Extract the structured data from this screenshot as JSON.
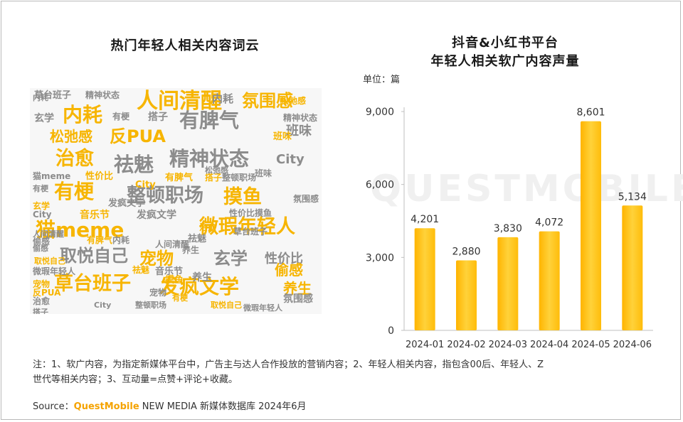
{
  "left_title": "热门年轻人相关内容词云",
  "right_title_line1": "抖音&小红书平台",
  "right_title_line2": "年轻人相关软广内容声量",
  "unit_label": "单位：篇",
  "watermark": "QUESTMOBILE",
  "note_line1": "注：1、软广内容，为指定新媒体平台中，广告主与达人合作投放的营销内容；2、年轻人相关内容，指包含00后、年轻人、Z",
  "note_line2": "世代等相关内容；3、互动量=点赞+评论+收藏。",
  "source_prefix": "Source：",
  "source_brand": "QuestMobile",
  "source_suffix": " NEW MEDIA 新媒体数据库 2024年6月",
  "colors": {
    "bar": "#ffc21a",
    "gold": "#f7b500",
    "grey": "#8c8c8c"
  },
  "word_cloud": [
    {
      "text": "草台班子",
      "color": "grey"
    },
    {
      "text": "精神状态",
      "color": "grey"
    },
    {
      "text": "人间清醒",
      "color": "gold"
    },
    {
      "text": "内耗",
      "color": "grey"
    },
    {
      "text": "氛围感",
      "color": "gold"
    },
    {
      "text": "内耗",
      "color": "gold"
    },
    {
      "text": "有梗",
      "color": "grey"
    },
    {
      "text": "搭子",
      "color": "grey"
    },
    {
      "text": "有脾气",
      "color": "grey"
    },
    {
      "text": "松弛感",
      "color": "gold"
    },
    {
      "text": "反PUA",
      "color": "gold"
    },
    {
      "text": "班味",
      "color": "grey"
    },
    {
      "text": "治愈",
      "color": "gold"
    },
    {
      "text": "祛魅",
      "color": "grey"
    },
    {
      "text": "精神状态",
      "color": "grey"
    },
    {
      "text": "City",
      "color": "grey"
    },
    {
      "text": "有梗",
      "color": "gold"
    },
    {
      "text": "整顿职场",
      "color": "grey"
    },
    {
      "text": "摸鱼",
      "color": "gold"
    },
    {
      "text": "猫meme",
      "color": "gold"
    },
    {
      "text": "微瑕年轻人",
      "color": "gold"
    },
    {
      "text": "取悦自己",
      "color": "grey"
    },
    {
      "text": "宠物",
      "color": "gold"
    },
    {
      "text": "玄学",
      "color": "grey"
    },
    {
      "text": "性价比",
      "color": "grey"
    },
    {
      "text": "偷感",
      "color": "gold"
    },
    {
      "text": "草台班子",
      "color": "gold"
    },
    {
      "text": "发疯文学",
      "color": "gold"
    },
    {
      "text": "养生",
      "color": "gold"
    },
    {
      "text": "音乐节",
      "color": "gold"
    },
    {
      "text": "玄学",
      "color": "grey"
    },
    {
      "text": "宠物",
      "color": "grey"
    },
    {
      "text": "养生",
      "color": "grey"
    },
    {
      "text": "发疯文学",
      "color": "grey"
    },
    {
      "text": "祛魅",
      "color": "grey"
    },
    {
      "text": "摸鱼",
      "color": "gold"
    },
    {
      "text": "氛围感",
      "color": "grey"
    },
    {
      "text": "班味",
      "color": "gold"
    },
    {
      "text": "有脾气",
      "color": "gold"
    },
    {
      "text": "性价比",
      "color": "gold"
    },
    {
      "text": "猫meme",
      "color": "grey"
    },
    {
      "text": "治愈",
      "color": "gold"
    },
    {
      "text": "松弛感",
      "color": "gold"
    },
    {
      "text": "City",
      "color": "gold"
    },
    {
      "text": "内耗",
      "color": "grey"
    },
    {
      "text": "有梗",
      "color": "grey"
    },
    {
      "text": "人间清醒",
      "color": "grey"
    },
    {
      "text": "搭子",
      "color": "gold"
    },
    {
      "text": "整顿职场",
      "color": "grey"
    },
    {
      "text": "偷感",
      "color": "grey"
    },
    {
      "text": "取悦自己",
      "color": "gold"
    },
    {
      "text": "微瑕年轻人",
      "color": "grey"
    },
    {
      "text": "班味",
      "color": "grey"
    },
    {
      "text": "音乐节",
      "color": "grey"
    },
    {
      "text": "City",
      "color": "grey"
    },
    {
      "text": "宠物",
      "color": "gold"
    },
    {
      "text": "反PUA",
      "color": "gold"
    },
    {
      "text": "祛魅",
      "color": "gold"
    },
    {
      "text": "治愈",
      "color": "grey"
    },
    {
      "text": "玄学",
      "color": "gold"
    },
    {
      "text": "内耗",
      "color": "grey"
    },
    {
      "text": "养生",
      "color": "grey"
    },
    {
      "text": "性价比",
      "color": "grey"
    },
    {
      "text": "摸鱼",
      "color": "grey"
    },
    {
      "text": "松弛感",
      "color": "grey"
    },
    {
      "text": "精神状态",
      "color": "grey"
    },
    {
      "text": "草台班子",
      "color": "grey"
    },
    {
      "text": "有脾气",
      "color": "gold"
    },
    {
      "text": "偷感",
      "color": "grey"
    },
    {
      "text": "氛围感",
      "color": "grey"
    },
    {
      "text": "发疯文学",
      "color": "grey"
    },
    {
      "text": "人间清醒",
      "color": "grey"
    },
    {
      "text": "City",
      "color": "grey"
    },
    {
      "text": "搭子",
      "color": "grey"
    },
    {
      "text": "整顿职场",
      "color": "grey"
    },
    {
      "text": "有梗",
      "color": "gold"
    },
    {
      "text": "取悦自己",
      "color": "gold"
    },
    {
      "text": "微瑕年轻人",
      "color": "grey"
    }
  ],
  "chart_data": {
    "type": "bar",
    "title": "抖音&小红书平台 年轻人相关软广内容声量",
    "ylabel": "单位：篇",
    "categories": [
      "2024-01",
      "2024-02",
      "2024-03",
      "2024-04",
      "2024-05",
      "2024-06"
    ],
    "values": [
      4201,
      2880,
      3830,
      4072,
      8601,
      5134
    ],
    "value_labels": [
      "4,201",
      "2,880",
      "3,830",
      "4,072",
      "8,601",
      "5,134"
    ],
    "yticks": [
      0,
      3000,
      6000,
      9000
    ],
    "ytick_labels": [
      "0",
      "3,000",
      "6,000",
      "9,000"
    ],
    "ylim": [
      0,
      9000
    ],
    "grid": false,
    "legend": "none"
  }
}
